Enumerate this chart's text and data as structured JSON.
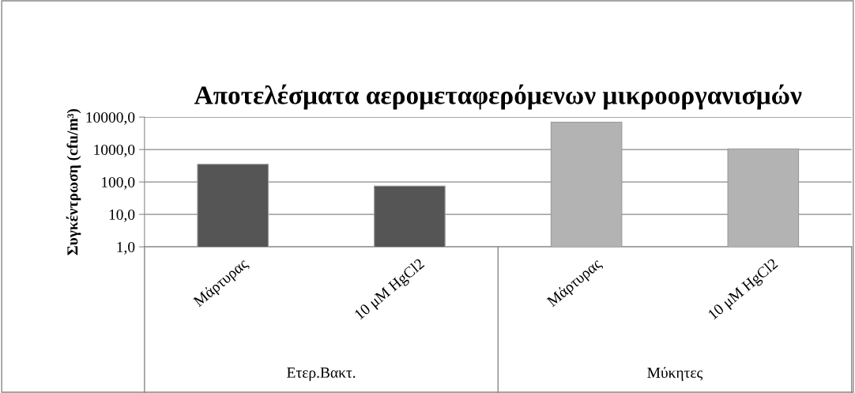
{
  "chart_data": {
    "type": "bar",
    "title": "Αποτελέσματα αερομεταφερόμενων μικροοργανισμών",
    "ylabel": "Συγκέντρωση (cfu/m³)",
    "categories": [
      "Μάρτυρας",
      "10 μM HgCl2",
      "Μάρτυρας",
      "10 μM HgCl2"
    ],
    "values": [
      350,
      75,
      7000,
      1050
    ],
    "colors": [
      "#555555",
      "#555555",
      "#b3b3b3",
      "#b3b3b3"
    ],
    "annotations": [
      "Ετερ.Βακτ.",
      "Μύκητες"
    ],
    "log": true,
    "ylim": [
      1,
      10000
    ],
    "yticks": [
      {
        "value": 1,
        "label": "1,0"
      },
      {
        "value": 10,
        "label": "10,0"
      },
      {
        "value": 100,
        "label": "100,0"
      },
      {
        "value": 1000,
        "label": "1000,0"
      },
      {
        "value": 10000,
        "label": "10000,0"
      }
    ],
    "grid": "y"
  }
}
